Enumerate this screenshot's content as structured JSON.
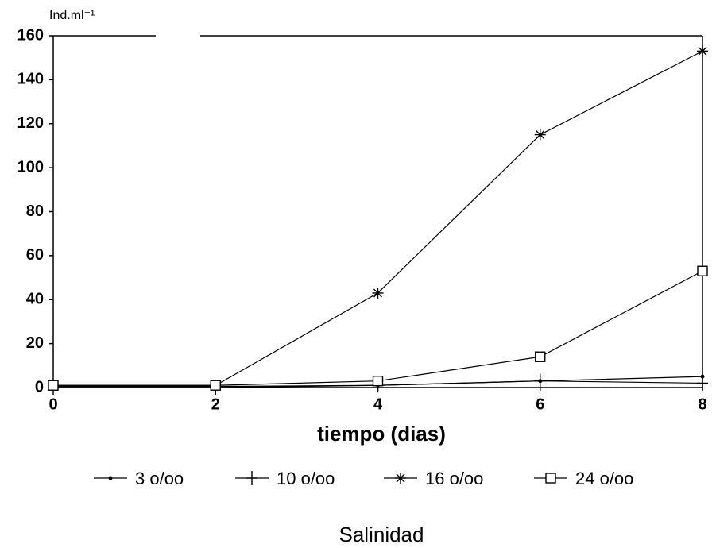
{
  "chart_data": {
    "type": "line",
    "y_label": "Ind.ml⁻¹",
    "x_label": "tiempo (dias)",
    "legend_title": "Salinidad",
    "x": [
      0,
      2,
      4,
      6,
      8
    ],
    "xlim": [
      0,
      8
    ],
    "xticks": [
      0,
      2,
      4,
      6,
      8
    ],
    "ylim": [
      0,
      160
    ],
    "yticks": [
      0,
      20,
      40,
      60,
      80,
      100,
      120,
      140,
      160
    ],
    "legend": "bottom",
    "series": [
      {
        "name": "3 o/oo",
        "color": "#000000",
        "marker": "dot",
        "values": [
          0.5,
          0.5,
          1,
          3,
          5
        ]
      },
      {
        "name": "10 o/oo",
        "color": "#000000",
        "marker": "plus",
        "values": [
          0,
          0,
          1,
          3,
          2
        ]
      },
      {
        "name": "16 o/oo",
        "color": "#000000",
        "marker": "asterisk",
        "values": [
          1,
          1,
          43,
          115,
          153
        ]
      },
      {
        "name": "24 o/oo",
        "color": "#000000",
        "marker": "square",
        "values": [
          1,
          1,
          3,
          14,
          53
        ]
      }
    ]
  }
}
